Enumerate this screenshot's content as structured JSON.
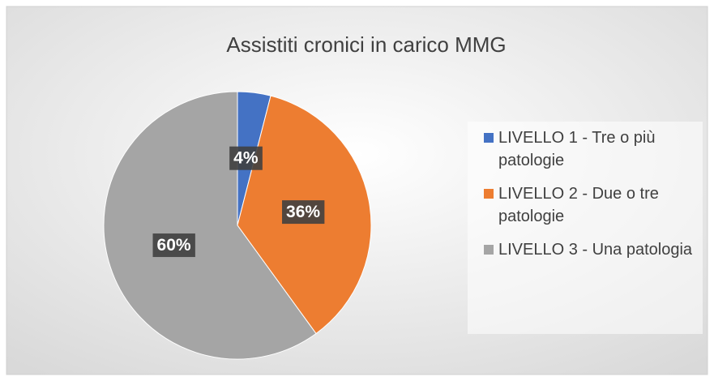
{
  "chart_data": {
    "type": "pie",
    "title": "Assistiti cronici in carico MMG",
    "categories": [
      "LIVELLO 1 - Tre o più patologie",
      "LIVELLO 2 - Due o tre patologie",
      "LIVELLO 3 - Una patologia"
    ],
    "values": [
      4,
      36,
      60
    ],
    "value_labels": [
      "4%",
      "36%",
      "60%"
    ],
    "colors": [
      "#4472c4",
      "#ed7d31",
      "#a5a5a5"
    ],
    "legend": "right"
  }
}
